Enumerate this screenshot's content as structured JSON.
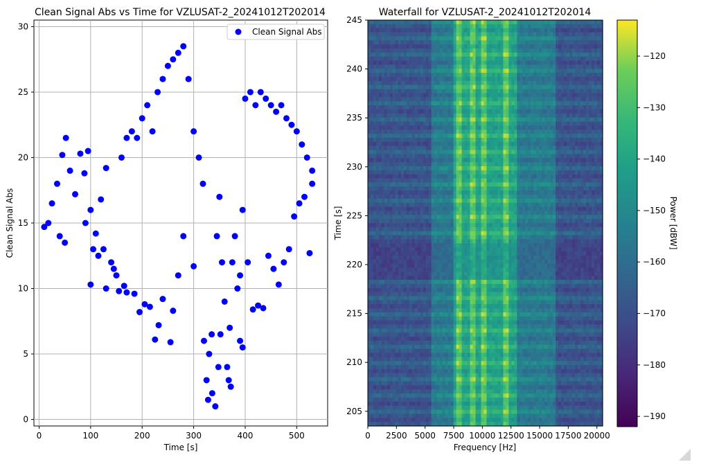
{
  "chart_data": [
    {
      "type": "scatter",
      "title": "Clean Signal Abs vs Time for VZLUSAT-2_20241012T202014",
      "xlabel": "Time [s]",
      "ylabel": "Clean Signal Abs",
      "xlim": [
        -10,
        560
      ],
      "ylim": [
        -0.5,
        30.5
      ],
      "xticks": [
        "0",
        "100",
        "200",
        "300",
        "400",
        "500"
      ],
      "yticks": [
        "0",
        "5",
        "10",
        "15",
        "20",
        "25",
        "30"
      ],
      "grid": true,
      "legend": {
        "position": "top-right",
        "entries": [
          "Clean Signal Abs"
        ]
      },
      "series": [
        {
          "name": "Clean Signal Abs",
          "color": "#0000ff",
          "points": [
            [
              10,
              14.7
            ],
            [
              18,
              15.0
            ],
            [
              25,
              16.5
            ],
            [
              35,
              18.0
            ],
            [
              45,
              20.2
            ],
            [
              52,
              21.5
            ],
            [
              60,
              19.0
            ],
            [
              70,
              17.2
            ],
            [
              80,
              20.3
            ],
            [
              88,
              18.8
            ],
            [
              95,
              20.5
            ],
            [
              100,
              16.0
            ],
            [
              110,
              14.2
            ],
            [
              120,
              16.8
            ],
            [
              130,
              19.2
            ],
            [
              140,
              12.0
            ],
            [
              150,
              11.0
            ],
            [
              160,
              20.0
            ],
            [
              170,
              21.5
            ],
            [
              180,
              22.0
            ],
            [
              190,
              21.5
            ],
            [
              200,
              23.0
            ],
            [
              210,
              24.0
            ],
            [
              220,
              22.0
            ],
            [
              230,
              25.0
            ],
            [
              240,
              26.0
            ],
            [
              250,
              27.0
            ],
            [
              260,
              27.5
            ],
            [
              270,
              28.0
            ],
            [
              280,
              28.5
            ],
            [
              290,
              26.0
            ],
            [
              300,
              22.0
            ],
            [
              310,
              20.0
            ],
            [
              318,
              18.0
            ],
            [
              325,
              3.0
            ],
            [
              330,
              5.0
            ],
            [
              335,
              6.5
            ],
            [
              345,
              14.0
            ],
            [
              350,
              17.0
            ],
            [
              355,
              12.0
            ],
            [
              360,
              9.0
            ],
            [
              365,
              4.0
            ],
            [
              370,
              7.0
            ],
            [
              375,
              12.0
            ],
            [
              380,
              14.0
            ],
            [
              385,
              10.0
            ],
            [
              390,
              6.0
            ],
            [
              395,
              5.5
            ],
            [
              400,
              24.5
            ],
            [
              410,
              25.0
            ],
            [
              420,
              24.0
            ],
            [
              430,
              25.0
            ],
            [
              440,
              24.5
            ],
            [
              450,
              24.0
            ],
            [
              460,
              23.5
            ],
            [
              470,
              24.0
            ],
            [
              480,
              23.0
            ],
            [
              490,
              22.5
            ],
            [
              500,
              22.0
            ],
            [
              510,
              21.0
            ],
            [
              520,
              20.0
            ],
            [
              530,
              19.0
            ],
            [
              40,
              14.0
            ],
            [
              50,
              13.5
            ],
            [
              90,
              15.0
            ],
            [
              105,
              13.0
            ],
            [
              115,
              12.5
            ],
            [
              130,
              10.0
            ],
            [
              145,
              11.5
            ],
            [
              155,
              9.8
            ],
            [
              170,
              9.7
            ],
            [
              185,
              9.6
            ],
            [
              195,
              8.2
            ],
            [
              205,
              8.8
            ],
            [
              215,
              8.6
            ],
            [
              225,
              6.1
            ],
            [
              232,
              7.2
            ],
            [
              240,
              9.2
            ],
            [
              255,
              5.9
            ],
            [
              260,
              8.3
            ],
            [
              270,
              11.0
            ],
            [
              280,
              14.0
            ],
            [
              300,
              11.7
            ],
            [
              320,
              6.0
            ],
            [
              328,
              1.5
            ],
            [
              336,
              2.0
            ],
            [
              342,
              1.0
            ],
            [
              348,
              4.0
            ],
            [
              352,
              6.5
            ],
            [
              368,
              3.0
            ],
            [
              372,
              2.5
            ],
            [
              390,
              11.0
            ],
            [
              395,
              16.0
            ],
            [
              405,
              12.0
            ],
            [
              415,
              8.4
            ],
            [
              425,
              8.7
            ],
            [
              435,
              8.5
            ],
            [
              445,
              12.5
            ],
            [
              455,
              11.5
            ],
            [
              465,
              10.3
            ],
            [
              475,
              12.0
            ],
            [
              485,
              13.0
            ],
            [
              495,
              15.5
            ],
            [
              505,
              16.5
            ],
            [
              515,
              17.0
            ],
            [
              525,
              12.7
            ],
            [
              530,
              18.0
            ],
            [
              100,
              10.3
            ],
            [
              125,
              13.0
            ],
            [
              165,
              10.2
            ]
          ]
        }
      ]
    },
    {
      "type": "heatmap",
      "title": "Waterfall for VZLUSAT-2_20241012T202014",
      "xlabel": "Frequency [Hz]",
      "ylabel": "Time [s]",
      "xlim": [
        0,
        20500
      ],
      "ylim": [
        203.5,
        245
      ],
      "xticks": [
        "0",
        "2500",
        "5000",
        "7500",
        "10000",
        "12500",
        "15000",
        "17500",
        "20000"
      ],
      "yticks": [
        "205",
        "210",
        "215",
        "220",
        "225",
        "230",
        "235",
        "240",
        "245"
      ],
      "colormap": "viridis",
      "colorbar": {
        "label": "Power [dBW]",
        "range": [
          -192,
          -113
        ],
        "ticks": [
          "−120",
          "−130",
          "−140",
          "−150",
          "−160",
          "−170",
          "−180",
          "−190"
        ]
      },
      "bands": [
        {
          "from_hz": 0,
          "to_hz": 5500,
          "level_dbw": -168
        },
        {
          "from_hz": 5500,
          "to_hz": 7500,
          "level_dbw": -155
        },
        {
          "from_hz": 7500,
          "to_hz": 13000,
          "level_dbw": -140
        },
        {
          "from_hz": 13000,
          "to_hz": 16500,
          "level_dbw": -155
        },
        {
          "from_hz": 16500,
          "to_hz": 20500,
          "level_dbw": -168
        }
      ],
      "strong_lines_hz": [
        8000,
        9200,
        10200,
        12000
      ],
      "gap_rows_s": [
        [
          218.5,
          222.0
        ]
      ]
    }
  ]
}
